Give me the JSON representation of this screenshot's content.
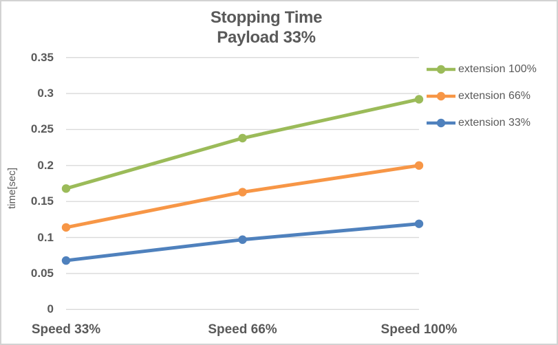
{
  "chart": {
    "title_line1": "Stopping Time",
    "title_line2": "Payload 33%"
  },
  "chart_data": {
    "type": "line",
    "title": "Stopping Time\nPayload 33%",
    "categories": [
      "Speed 33%",
      "Speed 66%",
      "Speed 100%"
    ],
    "series": [
      {
        "name": "extension 100%",
        "color": "#9BBB59",
        "values": [
          0.168,
          0.238,
          0.292
        ]
      },
      {
        "name": "extension 66%",
        "color": "#F79646",
        "values": [
          0.114,
          0.163,
          0.2
        ]
      },
      {
        "name": "extension 33%",
        "color": "#4F81BD",
        "values": [
          0.068,
          0.097,
          0.119
        ]
      }
    ],
    "xlabel": "",
    "ylabel": "time[sec]",
    "ylim": [
      0,
      0.35
    ],
    "yticks": [
      "0",
      "0.05",
      "0.1",
      "0.15",
      "0.2",
      "0.25",
      "0.3",
      "0.35"
    ],
    "grid": true,
    "legend_position": "right",
    "marker": "circle"
  },
  "colors": {
    "text": "#595959",
    "gridline": "#D9D9D9",
    "border": "#D2D2D2",
    "background": "#FFFFFF"
  }
}
